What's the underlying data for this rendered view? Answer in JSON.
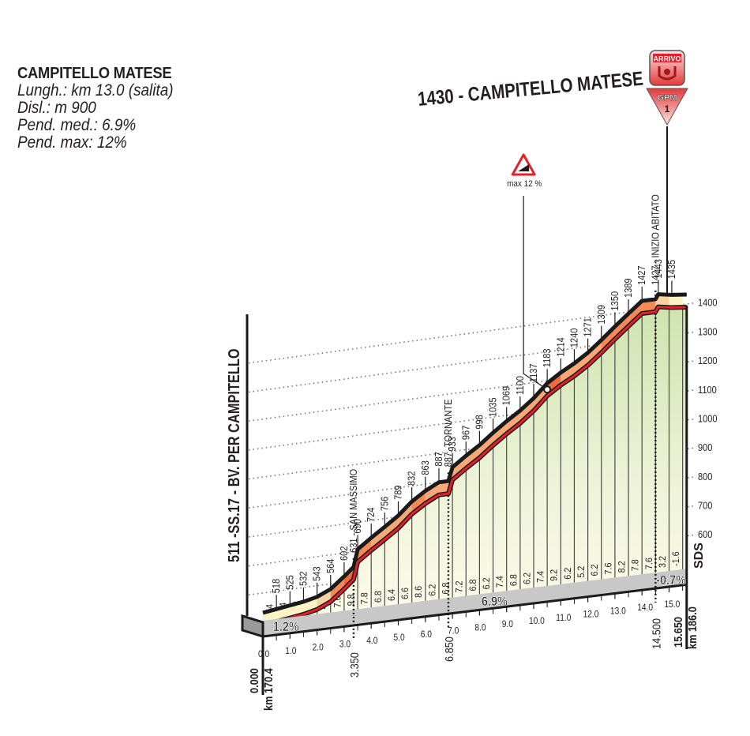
{
  "climb_info": {
    "name": "CAMPITELLO MATESE",
    "length": "Lungh.: km 13.0 (salita)",
    "elevation_gain": "Disl.: m 900",
    "avg_gradient": "Pend. med.:  6.9%",
    "max_gradient": "Pend. max:  12%"
  },
  "finish": {
    "title": "1430 - CAMPITELLO MATESE",
    "arrivo_label": "ARRIVO",
    "gpm_label": "GPM",
    "gpm_category": "1"
  },
  "max_gradient_marker": {
    "label": "max 12 %",
    "km": 10.5
  },
  "start_label": "511 -SS.17 - BV. PER CAMPITELLO",
  "waypoints": [
    {
      "km": 3.35,
      "label": "631 - SAN MASSIMO"
    },
    {
      "km": 6.85,
      "label": "887 -TORNANTE"
    },
    {
      "km": 14.5,
      "label": "1427 - INIZIO ABITATO"
    }
  ],
  "km_markers_bottom": [
    {
      "label": "0.000",
      "km": 0.0,
      "sub": "km 170.4"
    },
    {
      "label": "3.350",
      "km": 3.35
    },
    {
      "label": "6.850",
      "km": 6.85
    },
    {
      "label": "14.500",
      "km": 14.5
    },
    {
      "label": "15.650",
      "km": 15.65,
      "sub": "km 186.0"
    }
  ],
  "segment_gradients": [
    {
      "label": "1.2%",
      "km": 0.9
    },
    {
      "label": "6.9%",
      "km": 8.6
    },
    {
      "label": "-0.7%",
      "km": 15.05
    }
  ],
  "sds_label": "SDS",
  "chart_data": {
    "type": "area",
    "title": "CAMPITELLO MATESE",
    "xlabel": "km",
    "ylabel": "m",
    "ylim": [
      500,
      1450
    ],
    "x_ticks": [
      "0.0",
      "1.0",
      "2.0",
      "3.0",
      "4.0",
      "5.0",
      "6.0",
      "7.0",
      "8.0",
      "9.0",
      "10.0",
      "11.0",
      "12.0",
      "13.0",
      "14.0",
      "15.0"
    ],
    "y_ticks": [
      600,
      700,
      800,
      900,
      1000,
      1100,
      1200,
      1300,
      1400
    ],
    "x": [
      0.0,
      0.5,
      1.0,
      1.5,
      2.0,
      2.5,
      3.0,
      3.35,
      3.5,
      4.0,
      4.5,
      5.0,
      5.5,
      6.0,
      6.5,
      6.85,
      7.0,
      7.5,
      8.0,
      8.5,
      9.0,
      9.5,
      10.0,
      10.5,
      11.0,
      11.5,
      12.0,
      12.5,
      13.0,
      13.5,
      14.0,
      14.5,
      14.6,
      15.1,
      15.65
    ],
    "altitude": [
      511,
      518,
      525,
      532,
      543,
      564,
      602,
      631,
      690,
      724,
      756,
      789,
      832,
      863,
      887,
      887,
      933,
      967,
      998,
      1035,
      1069,
      1100,
      1137,
      1183,
      1214,
      1240,
      1271,
      1309,
      1350,
      1389,
      1427,
      1427,
      1443,
      1435,
      1430
    ],
    "point_labels": [
      "",
      "518",
      "525",
      "532",
      "543",
      "564",
      "602",
      "631",
      "690",
      "724",
      "756",
      "789",
      "832",
      "863",
      "887",
      "",
      "933",
      "967",
      "998",
      "1035",
      "1069",
      "1100",
      "1137",
      "1183",
      "1214",
      "1240",
      "1271",
      "1309",
      "1350",
      "1389",
      "1427",
      "",
      "1443",
      "1435",
      ""
    ],
    "gradients_per_half_km": [
      "1.4",
      "1.4",
      "1.4",
      "2.2",
      "4.2",
      "7.6",
      "9.8",
      "7.8",
      "6.8",
      "6.4",
      "6.6",
      "8.6",
      "6.2",
      "6.8",
      "7.2",
      "6.8",
      "6.2",
      "7.4",
      "6.8",
      "6.2",
      "7.4",
      "9.2",
      "6.2",
      "5.2",
      "6.2",
      "7.6",
      "8.2",
      "7.8",
      "7.6",
      "3.2",
      "-1.6"
    ]
  }
}
